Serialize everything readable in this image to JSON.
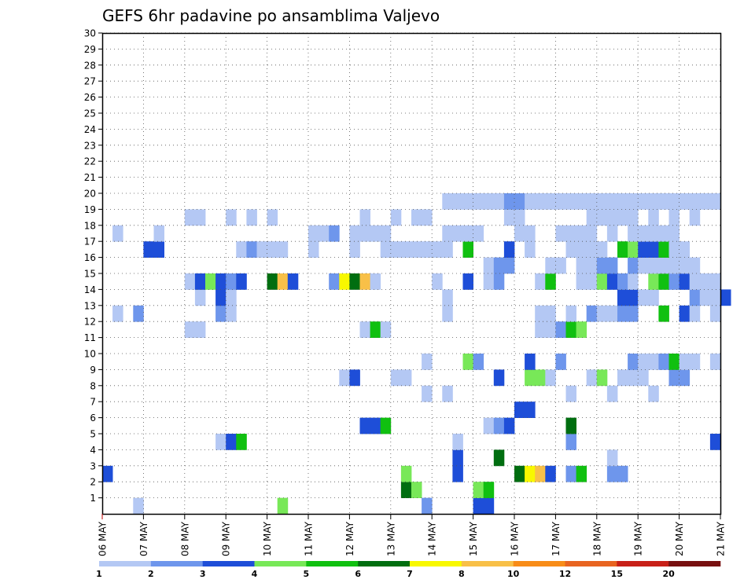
{
  "chart_data": {
    "type": "heatmap",
    "title": "GEFS 6hr padavine po ansamblima Valjevo",
    "x_tick_labels": [
      "06 MAY",
      "07 MAY",
      "08 MAY",
      "09 MAY",
      "10 MAY",
      "11 MAY",
      "12 MAY",
      "13 MAY",
      "14 MAY",
      "15 MAY",
      "16 MAY",
      "17 MAY",
      "18 MAY",
      "19 MAY",
      "20 MAY",
      "21 MAY"
    ],
    "y_tick_labels": [
      "1",
      "2",
      "3",
      "4",
      "5",
      "6",
      "7",
      "8",
      "9",
      "10",
      "11",
      "12",
      "13",
      "14",
      "15",
      "16",
      "17",
      "18",
      "19",
      "20",
      "21",
      "22",
      "23",
      "24",
      "25",
      "26",
      "27",
      "28",
      "29",
      "30"
    ],
    "y_range": [
      0,
      30
    ],
    "x_steps": 60,
    "grid": true,
    "colorbar": {
      "labels": [
        "1",
        "2",
        "3",
        "4",
        "5",
        "6",
        "7",
        "8",
        "10",
        "12",
        "15",
        "20"
      ],
      "colors": [
        "#b4c8f4",
        "#6e96ec",
        "#1e4ed8",
        "#78e858",
        "#10c010",
        "#006e10",
        "#f8f800",
        "#f8c048",
        "#f88c18",
        "#e86420",
        "#c82018",
        "#781010"
      ]
    },
    "cells": [
      [
        0,
        3,
        1
      ],
      [
        0,
        17,
        4
      ],
      [
        0,
        31,
        2
      ],
      [
        0,
        36,
        3
      ],
      [
        0,
        37,
        3
      ],
      [
        1,
        29,
        6
      ],
      [
        1,
        30,
        4
      ],
      [
        1,
        36,
        4
      ],
      [
        1,
        37,
        5
      ],
      [
        2,
        0,
        3
      ],
      [
        2,
        29,
        4
      ],
      [
        2,
        34,
        3
      ],
      [
        2,
        40,
        6
      ],
      [
        2,
        41,
        7
      ],
      [
        2,
        42,
        8
      ],
      [
        2,
        43,
        3
      ],
      [
        2,
        45,
        2
      ],
      [
        2,
        46,
        5
      ],
      [
        2,
        49,
        2
      ],
      [
        2,
        50,
        2
      ],
      [
        3,
        34,
        3
      ],
      [
        3,
        38,
        6
      ],
      [
        3,
        49,
        1
      ],
      [
        4,
        11,
        1
      ],
      [
        4,
        12,
        3
      ],
      [
        4,
        13,
        5
      ],
      [
        4,
        34,
        1
      ],
      [
        4,
        45,
        2
      ],
      [
        4,
        59,
        3
      ],
      [
        5,
        25,
        3
      ],
      [
        5,
        26,
        3
      ],
      [
        5,
        27,
        5
      ],
      [
        5,
        37,
        1
      ],
      [
        5,
        38,
        2
      ],
      [
        5,
        39,
        3
      ],
      [
        5,
        45,
        6
      ],
      [
        6,
        40,
        3
      ],
      [
        6,
        41,
        3
      ],
      [
        7,
        31,
        1
      ],
      [
        7,
        33,
        1
      ],
      [
        7,
        45,
        1
      ],
      [
        7,
        49,
        1
      ],
      [
        7,
        53,
        1
      ],
      [
        8,
        23,
        1
      ],
      [
        8,
        24,
        3
      ],
      [
        8,
        28,
        1
      ],
      [
        8,
        29,
        1
      ],
      [
        8,
        38,
        3
      ],
      [
        8,
        41,
        4
      ],
      [
        8,
        42,
        4
      ],
      [
        8,
        43,
        1
      ],
      [
        8,
        47,
        1
      ],
      [
        8,
        48,
        4
      ],
      [
        8,
        50,
        1
      ],
      [
        8,
        51,
        1
      ],
      [
        8,
        52,
        1
      ],
      [
        8,
        55,
        2
      ],
      [
        8,
        56,
        2
      ],
      [
        9,
        31,
        1
      ],
      [
        9,
        35,
        4
      ],
      [
        9,
        36,
        2
      ],
      [
        9,
        41,
        3
      ],
      [
        9,
        44,
        2
      ],
      [
        9,
        51,
        2
      ],
      [
        9,
        52,
        1
      ],
      [
        9,
        53,
        1
      ],
      [
        9,
        54,
        2
      ],
      [
        9,
        55,
        5
      ],
      [
        9,
        56,
        1
      ],
      [
        9,
        57,
        1
      ],
      [
        9,
        59,
        1
      ],
      [
        11,
        8,
        1
      ],
      [
        11,
        9,
        1
      ],
      [
        11,
        25,
        1
      ],
      [
        11,
        26,
        5
      ],
      [
        11,
        27,
        1
      ],
      [
        11,
        42,
        1
      ],
      [
        11,
        43,
        1
      ],
      [
        11,
        44,
        2
      ],
      [
        11,
        45,
        5
      ],
      [
        11,
        46,
        4
      ],
      [
        12,
        1,
        1
      ],
      [
        12,
        3,
        2
      ],
      [
        12,
        11,
        2
      ],
      [
        12,
        12,
        1
      ],
      [
        12,
        33,
        1
      ],
      [
        12,
        42,
        1
      ],
      [
        12,
        43,
        1
      ],
      [
        12,
        45,
        1
      ],
      [
        12,
        47,
        2
      ],
      [
        12,
        48,
        1
      ],
      [
        12,
        49,
        1
      ],
      [
        12,
        50,
        2
      ],
      [
        12,
        51,
        2
      ],
      [
        12,
        54,
        5
      ],
      [
        12,
        56,
        3
      ],
      [
        12,
        57,
        1
      ],
      [
        12,
        59,
        1
      ],
      [
        13,
        9,
        1
      ],
      [
        13,
        11,
        3
      ],
      [
        13,
        12,
        1
      ],
      [
        13,
        33,
        1
      ],
      [
        13,
        50,
        3
      ],
      [
        13,
        51,
        3
      ],
      [
        13,
        52,
        1
      ],
      [
        13,
        53,
        1
      ],
      [
        13,
        57,
        2
      ],
      [
        13,
        58,
        1
      ],
      [
        13,
        59,
        1
      ],
      [
        13,
        60,
        3
      ],
      [
        14,
        8,
        1
      ],
      [
        14,
        9,
        3
      ],
      [
        14,
        10,
        4
      ],
      [
        14,
        11,
        3
      ],
      [
        14,
        12,
        2
      ],
      [
        14,
        13,
        3
      ],
      [
        14,
        16,
        6
      ],
      [
        14,
        17,
        8
      ],
      [
        14,
        18,
        3
      ],
      [
        14,
        22,
        2
      ],
      [
        14,
        23,
        7
      ],
      [
        14,
        24,
        6
      ],
      [
        14,
        25,
        8
      ],
      [
        14,
        26,
        1
      ],
      [
        14,
        32,
        1
      ],
      [
        14,
        35,
        3
      ],
      [
        14,
        37,
        1
      ],
      [
        14,
        38,
        2
      ],
      [
        14,
        42,
        1
      ],
      [
        14,
        43,
        5
      ],
      [
        14,
        46,
        1
      ],
      [
        14,
        47,
        1
      ],
      [
        14,
        48,
        4
      ],
      [
        14,
        49,
        3
      ],
      [
        14,
        50,
        2
      ],
      [
        14,
        51,
        1
      ],
      [
        14,
        53,
        4
      ],
      [
        14,
        54,
        5
      ],
      [
        14,
        55,
        2
      ],
      [
        14,
        56,
        3
      ],
      [
        14,
        57,
        1
      ],
      [
        14,
        58,
        1
      ],
      [
        14,
        59,
        1
      ],
      [
        15,
        37,
        1
      ],
      [
        15,
        38,
        2
      ],
      [
        15,
        39,
        2
      ],
      [
        15,
        43,
        1
      ],
      [
        15,
        44,
        1
      ],
      [
        15,
        46,
        1
      ],
      [
        15,
        47,
        1
      ],
      [
        15,
        48,
        2
      ],
      [
        15,
        49,
        2
      ],
      [
        15,
        51,
        2
      ],
      [
        15,
        52,
        1
      ],
      [
        15,
        53,
        1
      ],
      [
        15,
        54,
        1
      ],
      [
        15,
        55,
        1
      ],
      [
        15,
        56,
        1
      ],
      [
        15,
        57,
        1
      ],
      [
        16,
        4,
        3
      ],
      [
        16,
        5,
        3
      ],
      [
        16,
        13,
        1
      ],
      [
        16,
        14,
        2
      ],
      [
        16,
        15,
        1
      ],
      [
        16,
        16,
        1
      ],
      [
        16,
        17,
        1
      ],
      [
        16,
        20,
        1
      ],
      [
        16,
        24,
        1
      ],
      [
        16,
        27,
        1
      ],
      [
        16,
        28,
        1
      ],
      [
        16,
        29,
        1
      ],
      [
        16,
        30,
        1
      ],
      [
        16,
        31,
        1
      ],
      [
        16,
        32,
        1
      ],
      [
        16,
        33,
        1
      ],
      [
        16,
        35,
        5
      ],
      [
        16,
        39,
        3
      ],
      [
        16,
        41,
        1
      ],
      [
        16,
        45,
        1
      ],
      [
        16,
        46,
        1
      ],
      [
        16,
        47,
        1
      ],
      [
        16,
        48,
        1
      ],
      [
        16,
        50,
        5
      ],
      [
        16,
        51,
        4
      ],
      [
        16,
        52,
        3
      ],
      [
        16,
        53,
        3
      ],
      [
        16,
        54,
        5
      ],
      [
        16,
        55,
        1
      ],
      [
        16,
        56,
        1
      ],
      [
        17,
        1,
        1
      ],
      [
        17,
        5,
        1
      ],
      [
        17,
        20,
        1
      ],
      [
        17,
        21,
        1
      ],
      [
        17,
        22,
        2
      ],
      [
        17,
        24,
        1
      ],
      [
        17,
        25,
        1
      ],
      [
        17,
        26,
        1
      ],
      [
        17,
        27,
        1
      ],
      [
        17,
        33,
        1
      ],
      [
        17,
        34,
        1
      ],
      [
        17,
        35,
        1
      ],
      [
        17,
        36,
        1
      ],
      [
        17,
        40,
        1
      ],
      [
        17,
        41,
        1
      ],
      [
        17,
        44,
        1
      ],
      [
        17,
        45,
        1
      ],
      [
        17,
        46,
        1
      ],
      [
        17,
        47,
        1
      ],
      [
        17,
        49,
        1
      ],
      [
        17,
        51,
        1
      ],
      [
        17,
        52,
        1
      ],
      [
        17,
        53,
        1
      ],
      [
        17,
        54,
        1
      ],
      [
        17,
        55,
        1
      ],
      [
        18,
        8,
        1
      ],
      [
        18,
        9,
        1
      ],
      [
        18,
        12,
        1
      ],
      [
        18,
        14,
        1
      ],
      [
        18,
        16,
        1
      ],
      [
        18,
        25,
        1
      ],
      [
        18,
        28,
        1
      ],
      [
        18,
        30,
        1
      ],
      [
        18,
        31,
        1
      ],
      [
        18,
        39,
        1
      ],
      [
        18,
        40,
        1
      ],
      [
        18,
        47,
        1
      ],
      [
        18,
        48,
        1
      ],
      [
        18,
        49,
        1
      ],
      [
        18,
        50,
        1
      ],
      [
        18,
        51,
        1
      ],
      [
        18,
        53,
        1
      ],
      [
        18,
        55,
        1
      ],
      [
        18,
        57,
        1
      ],
      [
        19,
        33,
        1
      ],
      [
        19,
        34,
        1
      ],
      [
        19,
        35,
        1
      ],
      [
        19,
        36,
        1
      ],
      [
        19,
        37,
        1
      ],
      [
        19,
        38,
        1
      ],
      [
        19,
        39,
        2
      ],
      [
        19,
        40,
        2
      ],
      [
        19,
        41,
        1
      ],
      [
        19,
        42,
        1
      ],
      [
        19,
        43,
        1
      ],
      [
        19,
        44,
        1
      ],
      [
        19,
        45,
        1
      ],
      [
        19,
        46,
        1
      ],
      [
        19,
        47,
        1
      ],
      [
        19,
        48,
        1
      ],
      [
        19,
        49,
        1
      ],
      [
        19,
        50,
        1
      ],
      [
        19,
        51,
        1
      ],
      [
        19,
        52,
        1
      ],
      [
        19,
        53,
        1
      ],
      [
        19,
        54,
        1
      ],
      [
        19,
        55,
        1
      ],
      [
        19,
        56,
        1
      ],
      [
        19,
        57,
        1
      ],
      [
        19,
        58,
        1
      ],
      [
        19,
        59,
        1
      ]
    ]
  }
}
